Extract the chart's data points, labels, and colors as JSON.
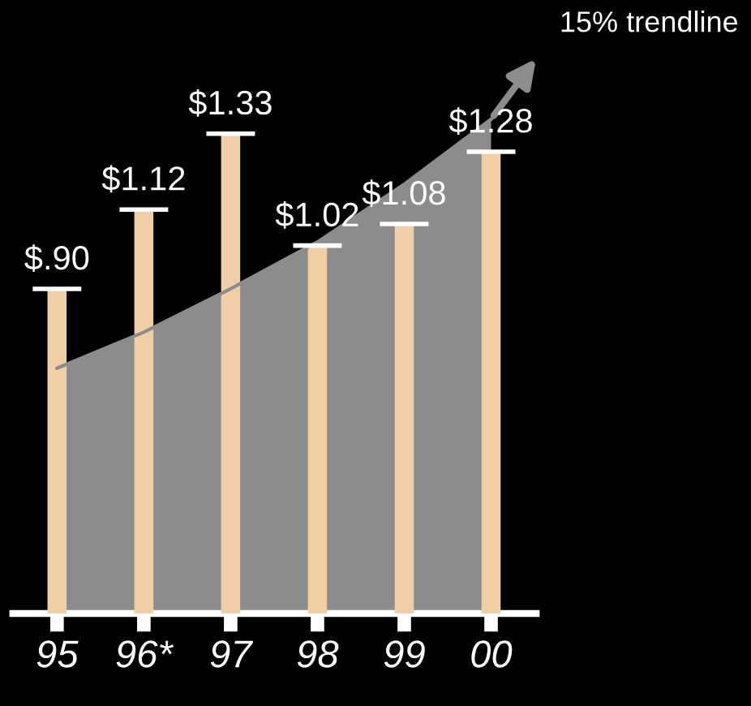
{
  "chart_data": {
    "type": "bar",
    "categories": [
      "95",
      "96*",
      "97",
      "98",
      "99",
      "00"
    ],
    "series": [
      {
        "type": "area",
        "color": "#8c8c8c",
        "values": [
          0.68,
          0.78,
          0.9,
          1.03,
          1.19,
          1.37
        ]
      },
      {
        "color": "#f0cfa6",
        "values": [
          0.9,
          1.12,
          1.33,
          1.02,
          1.08,
          1.28
        ],
        "value_labels": [
          "$.90",
          "$1.12",
          "$1.33",
          "$1.02",
          "$1.08",
          "$1.28"
        ]
      }
    ],
    "annotations": [
      "15% trendline"
    ],
    "grid": false,
    "legend": false
  }
}
